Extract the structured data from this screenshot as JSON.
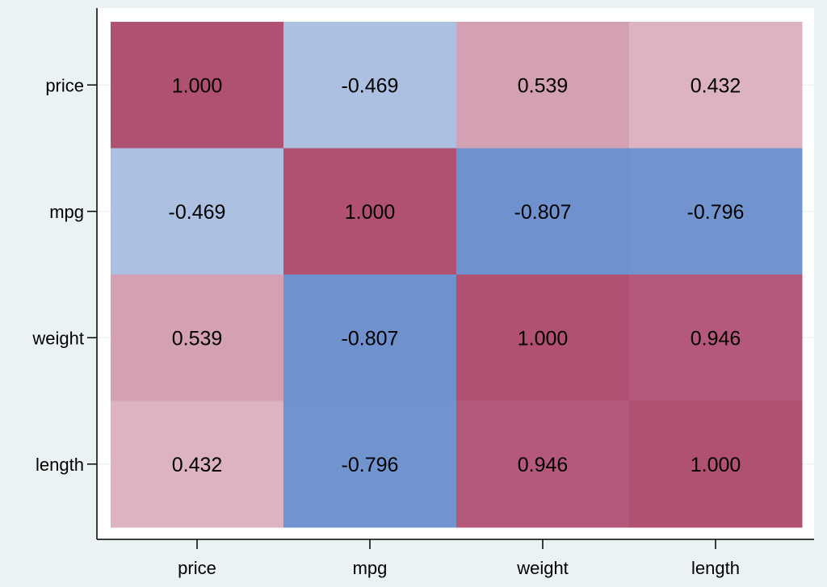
{
  "chart_data": {
    "type": "heatmap",
    "title": "",
    "xlabel": "",
    "ylabel": "",
    "x_categories": [
      "price",
      "mpg",
      "weight",
      "length"
    ],
    "y_categories": [
      "price",
      "mpg",
      "weight",
      "length"
    ],
    "values": [
      [
        1.0,
        -0.469,
        0.539,
        0.432
      ],
      [
        -0.469,
        1.0,
        -0.807,
        -0.796
      ],
      [
        0.539,
        -0.807,
        1.0,
        0.946
      ],
      [
        0.432,
        -0.796,
        0.946,
        1.0
      ]
    ],
    "labels": [
      [
        "1.000",
        "-0.469",
        "0.539",
        "0.432"
      ],
      [
        "-0.469",
        "1.000",
        "-0.807",
        "-0.796"
      ],
      [
        "0.539",
        "-0.807",
        "1.000",
        "0.946"
      ],
      [
        "0.432",
        "-0.796",
        "0.946",
        "1.000"
      ]
    ],
    "colors": {
      "background": "#eaf2f3",
      "plot_background": "#ffffff",
      "grid": "#e6eeef",
      "positive": "#b05073",
      "negative": "#4d78c2"
    },
    "grid": true,
    "legend": "none"
  }
}
